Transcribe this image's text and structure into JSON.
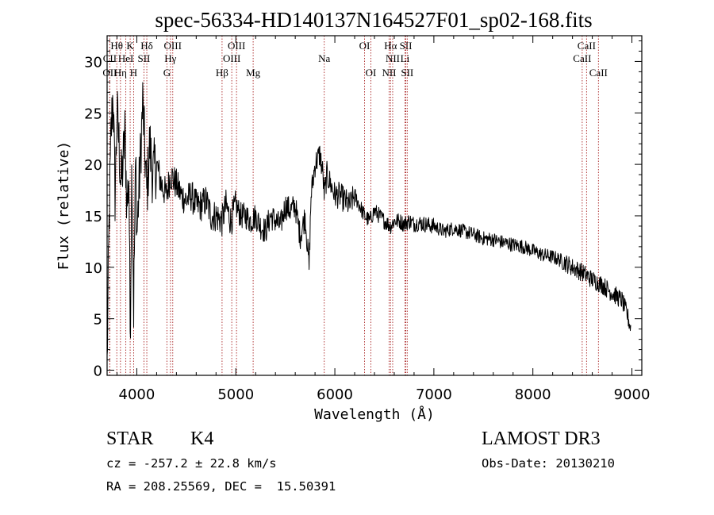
{
  "chart_data": {
    "type": "line",
    "title": "spec-56334-HD140137N164527F01_sp02-168.fits",
    "xlabel": "Wavelength (Å)",
    "ylabel": "Flux (relative)",
    "xlim": [
      3700,
      9100
    ],
    "ylim": [
      -0.5,
      32.5
    ],
    "xticks": [
      4000,
      5000,
      6000,
      7000,
      8000,
      9000
    ],
    "yticks": [
      0,
      5,
      10,
      15,
      20,
      25,
      30
    ],
    "grid": false,
    "spectrum_anchor": {
      "x": [
        3700,
        3720,
        3740,
        3760,
        3780,
        3800,
        3820,
        3840,
        3860,
        3880,
        3900,
        3920,
        3933,
        3950,
        3968,
        3990,
        4000,
        4030,
        4060,
        4101,
        4130,
        4160,
        4200,
        4250,
        4300,
        4340,
        4400,
        4450,
        4500,
        4550,
        4600,
        4650,
        4700,
        4750,
        4800,
        4861,
        4900,
        4950,
        5000,
        5050,
        5100,
        5150,
        5200,
        5250,
        5300,
        5350,
        5400,
        5450,
        5500,
        5550,
        5600,
        5650,
        5700,
        5740,
        5760,
        5800,
        5850,
        5880,
        5893,
        5920,
        5960,
        6000,
        6050,
        6100,
        6150,
        6200,
        6250,
        6300,
        6350,
        6400,
        6450,
        6500,
        6563,
        6600,
        6650,
        6700,
        6750,
        6800,
        6850,
        6900,
        6950,
        7000,
        7100,
        7200,
        7300,
        7400,
        7500,
        7600,
        7700,
        7800,
        7900,
        8000,
        8100,
        8200,
        8300,
        8400,
        8500,
        8600,
        8700,
        8800,
        8900,
        8950,
        8990
      ],
      "y": [
        0.5,
        14,
        23,
        27,
        17,
        25,
        22,
        18,
        20,
        23,
        16,
        19,
        3,
        21,
        6,
        21,
        13,
        19,
        26,
        17,
        22,
        19,
        20,
        18,
        17,
        19,
        18,
        17,
        16.5,
        17,
        16,
        16,
        16.5,
        15,
        15,
        14.5,
        16,
        14.5,
        16,
        15,
        15,
        14.5,
        15,
        14,
        13.5,
        15,
        14.5,
        14,
        16,
        15.5,
        16,
        13,
        15,
        10,
        17,
        20,
        21,
        19,
        17,
        19,
        18,
        17,
        17,
        16.5,
        16,
        17,
        16,
        15,
        14.5,
        15.5,
        15,
        14.5,
        14,
        14.5,
        14.5,
        14.2,
        14.5,
        14.2,
        14.3,
        14.2,
        14.1,
        14.0,
        13.5,
        13.8,
        13.5,
        13.2,
        12.8,
        12.7,
        12.4,
        12.2,
        12.0,
        11.6,
        11.2,
        11.0,
        10.6,
        10.0,
        9.5,
        8.8,
        8.3,
        7.5,
        6.8,
        5.5,
        4.0
      ]
    },
    "spectral_lines": [
      {
        "label": "Hθ",
        "wavelength": 3798,
        "row": 0
      },
      {
        "label": "K",
        "wavelength": 3933,
        "row": 0
      },
      {
        "label": "Hδ",
        "wavelength": 4101,
        "row": 0
      },
      {
        "label": "OIII",
        "wavelength": 4363,
        "row": 0
      },
      {
        "label": "OIII",
        "wavelength": 5007,
        "row": 0
      },
      {
        "label": "Na",
        "wavelength": 5893,
        "row": 1
      },
      {
        "label": "OI",
        "wavelength": 6300,
        "row": 0
      },
      {
        "label": "Hα",
        "wavelength": 6563,
        "row": 0
      },
      {
        "label": "SII",
        "wavelength": 6717,
        "row": 0
      },
      {
        "label": "CaII",
        "wavelength": 8542,
        "row": 0
      },
      {
        "label": "CII",
        "wavelength": 3727,
        "row": 1
      },
      {
        "label": "HeI",
        "wavelength": 3889,
        "row": 1
      },
      {
        "label": "SII",
        "wavelength": 4072,
        "row": 1
      },
      {
        "label": "Hγ",
        "wavelength": 4340,
        "row": 1
      },
      {
        "label": "OIII",
        "wavelength": 4959,
        "row": 1
      },
      {
        "label": "NII",
        "wavelength": 6584,
        "row": 1
      },
      {
        "label": "Li",
        "wavelength": 6708,
        "row": 1
      },
      {
        "label": "CaII",
        "wavelength": 8498,
        "row": 1
      },
      {
        "label": "OII",
        "wavelength": 3727,
        "row": 2
      },
      {
        "label": "Hη",
        "wavelength": 3835,
        "row": 2
      },
      {
        "label": "H",
        "wavelength": 3968,
        "row": 2
      },
      {
        "label": "G",
        "wavelength": 4304,
        "row": 2
      },
      {
        "label": "Hβ",
        "wavelength": 4861,
        "row": 2
      },
      {
        "label": "Mg",
        "wavelength": 5175,
        "row": 2
      },
      {
        "label": "OI",
        "wavelength": 6364,
        "row": 2
      },
      {
        "label": "NII",
        "wavelength": 6548,
        "row": 2
      },
      {
        "label": "SII",
        "wavelength": 6731,
        "row": 2
      },
      {
        "label": "CaII",
        "wavelength": 8662,
        "row": 2
      }
    ]
  },
  "info": {
    "class": "STAR",
    "subclass": "K4",
    "survey": "LAMOST DR3",
    "cz": "cz = -257.2 ± 22.8 km/s",
    "obsdate": "Obs-Date: 20130210",
    "radec": "RA = 208.25569, DEC =  15.50391"
  }
}
